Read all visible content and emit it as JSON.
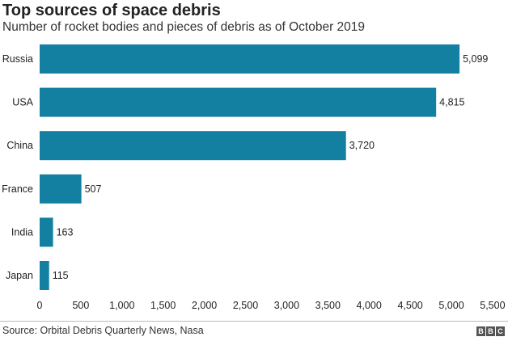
{
  "title": "Top sources of space debris",
  "subtitle": "Number of rocket bodies and pieces of debris as of October 2019",
  "source": "Source: Orbital Debris Quarterly News, Nasa",
  "logo": "BBC",
  "chart_data": {
    "type": "bar",
    "orientation": "horizontal",
    "title": "Top sources of space debris",
    "categories": [
      "Russia",
      "USA",
      "China",
      "France",
      "India",
      "Japan"
    ],
    "values": [
      5099,
      4815,
      3720,
      507,
      163,
      115
    ],
    "value_labels": [
      "5,099",
      "4,815",
      "3,720",
      "507",
      "163",
      "115"
    ],
    "xticks": [
      0,
      500,
      1000,
      1500,
      2000,
      2500,
      3000,
      3500,
      4000,
      4500,
      5000,
      5500
    ],
    "xtick_labels": [
      "0",
      "500",
      "1,000",
      "1,500",
      "2,000",
      "2,500",
      "3,000",
      "3,500",
      "4,000",
      "4,500",
      "5,000",
      "5,500"
    ],
    "xlim": [
      0,
      5500
    ],
    "grid": false,
    "color": "#1380a1"
  }
}
